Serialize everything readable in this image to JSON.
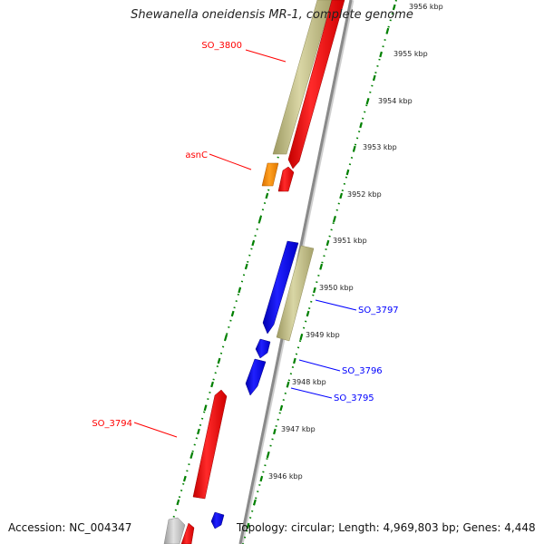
{
  "title": "Shewanella oneidensis MR-1, complete genome",
  "footer": {
    "accession": "Accession: NC_004347",
    "topology": "Topology: circular; Length: 4,969,803 bp; Genes: 4,448"
  },
  "ticks": [
    "3956 kbp",
    "3955 kbp",
    "3954 kbp",
    "3953 kbp",
    "3952 kbp",
    "3951 kbp",
    "3950 kbp",
    "3949 kbp",
    "3948 kbp",
    "3947 kbp",
    "3946 kbp"
  ],
  "genes_forward": [
    {
      "name": "SO_3800",
      "color": "#ff0000"
    },
    {
      "name": "asnC",
      "color": "#ff0000"
    },
    {
      "name": "SO_3794",
      "color": "#ff0000"
    }
  ],
  "genes_reverse": [
    {
      "name": "SO_3797",
      "color": "#0000ff"
    },
    {
      "name": "SO_3796",
      "color": "#0000ff"
    },
    {
      "name": "SO_3795",
      "color": "#0000ff"
    }
  ],
  "colors": {
    "forward_cds": "#ff0000",
    "reverse_cds": "#0000ff",
    "orf": "#b9b57e",
    "regulator": "#ff8c00",
    "backbone": "#808080",
    "tick_dots": "#008000"
  }
}
